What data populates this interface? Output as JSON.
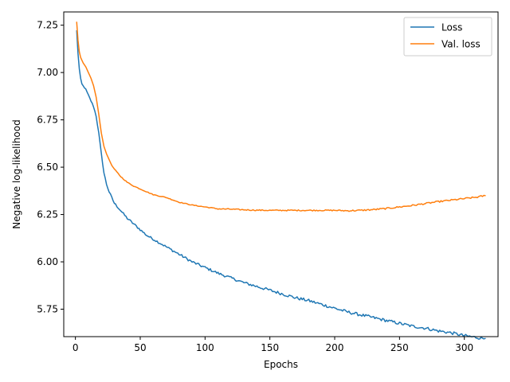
{
  "chart_data": {
    "type": "line",
    "title": "",
    "xlabel": "Epochs",
    "ylabel": "Negative log-likelihood",
    "xlim": [
      -9,
      326
    ],
    "ylim": [
      5.605,
      7.32
    ],
    "xticks": [
      0,
      50,
      100,
      150,
      200,
      250,
      300
    ],
    "yticks": [
      5.75,
      6.0,
      6.25,
      6.5,
      6.75,
      7.0,
      7.25
    ],
    "ytick_labels": [
      "5.75",
      "6.00",
      "6.25",
      "6.50",
      "6.75",
      "7.00",
      "7.25"
    ],
    "grid": false,
    "legend_position": "top-right",
    "series": [
      {
        "name": "Loss",
        "color": "#1f77b4",
        "x": [
          1,
          2,
          3,
          4,
          5,
          6,
          8,
          10,
          12,
          14,
          16,
          18,
          20,
          22,
          24,
          26,
          28,
          30,
          35,
          40,
          45,
          50,
          55,
          60,
          70,
          80,
          90,
          100,
          110,
          120,
          130,
          140,
          150,
          160,
          170,
          180,
          190,
          200,
          210,
          220,
          230,
          240,
          250,
          260,
          270,
          280,
          290,
          300,
          310,
          316
        ],
        "y": [
          7.22,
          7.1,
          7.02,
          6.97,
          6.94,
          6.93,
          6.91,
          6.88,
          6.85,
          6.82,
          6.77,
          6.68,
          6.57,
          6.47,
          6.41,
          6.37,
          6.34,
          6.31,
          6.27,
          6.23,
          6.2,
          6.17,
          6.14,
          6.12,
          6.08,
          6.04,
          6.0,
          5.97,
          5.94,
          5.915,
          5.89,
          5.87,
          5.85,
          5.83,
          5.81,
          5.795,
          5.775,
          5.755,
          5.735,
          5.72,
          5.705,
          5.69,
          5.675,
          5.66,
          5.65,
          5.635,
          5.625,
          5.61,
          5.6,
          5.595
        ],
        "noise": [
          0,
          0,
          0,
          0,
          0,
          0,
          0.004,
          0.004,
          0.004,
          0.004,
          0.004,
          0.004,
          0.004,
          0.004,
          0.005,
          0.005,
          0.005,
          0.005,
          0.005,
          0.006,
          0.006,
          0.006,
          0.006,
          0.006,
          0.006,
          0.007,
          0.007,
          0.007,
          0.007,
          0.007,
          0.007,
          0.008,
          0.008,
          0.008,
          0.008,
          0.008,
          0.008,
          0.008,
          0.008,
          0.008,
          0.008,
          0.008,
          0.008,
          0.008,
          0.008,
          0.008,
          0.008,
          0.008,
          0.008,
          0.008
        ]
      },
      {
        "name": "Val. loss",
        "color": "#ff7f0e",
        "x": [
          1,
          2,
          3,
          4,
          6,
          8,
          10,
          12,
          14,
          16,
          18,
          20,
          22,
          24,
          26,
          28,
          30,
          35,
          40,
          45,
          50,
          55,
          60,
          70,
          80,
          90,
          100,
          110,
          120,
          130,
          140,
          150,
          160,
          170,
          180,
          190,
          200,
          210,
          220,
          230,
          240,
          250,
          260,
          270,
          280,
          290,
          300,
          310,
          316
        ],
        "y": [
          7.265,
          7.17,
          7.11,
          7.08,
          7.05,
          7.03,
          7.0,
          6.97,
          6.93,
          6.87,
          6.78,
          6.68,
          6.61,
          6.57,
          6.54,
          6.51,
          6.49,
          6.45,
          6.42,
          6.4,
          6.385,
          6.37,
          6.355,
          6.34,
          6.315,
          6.3,
          6.29,
          6.28,
          6.278,
          6.275,
          6.273,
          6.272,
          6.272,
          6.272,
          6.272,
          6.272,
          6.272,
          6.27,
          6.272,
          6.276,
          6.282,
          6.29,
          6.298,
          6.308,
          6.318,
          6.326,
          6.334,
          6.342,
          6.35
        ],
        "noise": [
          0,
          0,
          0,
          0,
          0,
          0,
          0,
          0,
          0,
          0,
          0,
          0,
          0,
          0,
          0,
          0,
          0.002,
          0.002,
          0.002,
          0.002,
          0.002,
          0.002,
          0.002,
          0.002,
          0.002,
          0.002,
          0.002,
          0.003,
          0.003,
          0.003,
          0.003,
          0.003,
          0.003,
          0.003,
          0.003,
          0.003,
          0.003,
          0.004,
          0.004,
          0.004,
          0.004,
          0.004,
          0.004,
          0.004,
          0.004,
          0.004,
          0.004,
          0.004,
          0.004
        ]
      }
    ]
  }
}
